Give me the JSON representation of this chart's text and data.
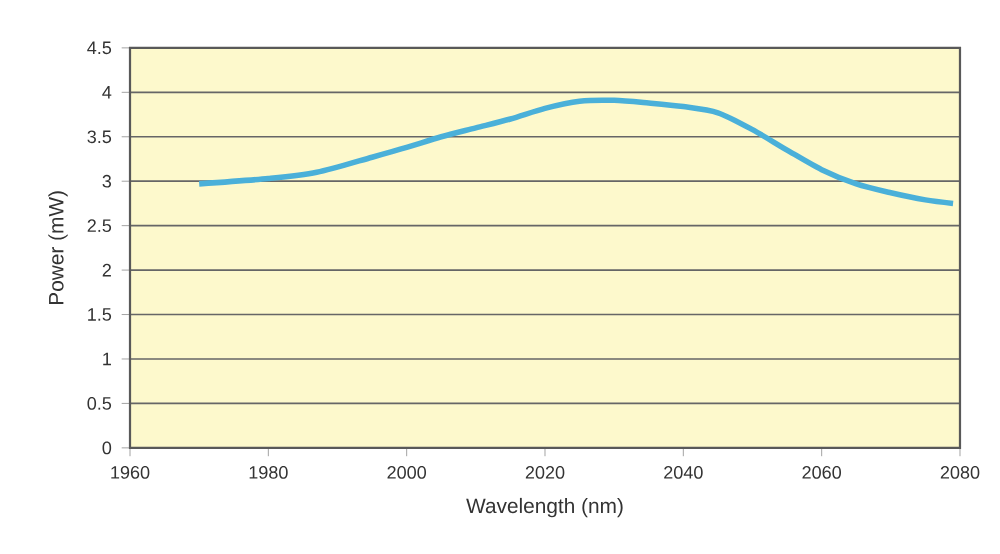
{
  "chart_data": {
    "type": "line",
    "xlabel": "Wavelength (nm)",
    "ylabel": "Power (mW)",
    "x": [
      1970,
      1980,
      1987,
      1995,
      2000,
      2005,
      2010,
      2015,
      2020,
      2025,
      2030,
      2035,
      2040,
      2045,
      2050,
      2055,
      2060,
      2065,
      2070,
      2075,
      2079
    ],
    "series": [
      {
        "color": "#4ab0d9",
        "values": [
          2.97,
          3.03,
          3.1,
          3.27,
          3.38,
          3.5,
          3.6,
          3.7,
          3.82,
          3.9,
          3.91,
          3.88,
          3.84,
          3.77,
          3.58,
          3.35,
          3.13,
          2.97,
          2.87,
          2.79,
          2.75
        ]
      }
    ],
    "xlim": [
      1960,
      2080
    ],
    "xticks": [
      1960,
      1980,
      2000,
      2020,
      2040,
      2060,
      2080
    ],
    "ylim": [
      0,
      4.5
    ],
    "yticks": [
      0,
      0.5,
      1,
      1.5,
      2,
      2.5,
      3,
      3.5,
      4,
      4.5
    ],
    "grid": "y",
    "marker": "none",
    "line_style": "solid"
  }
}
